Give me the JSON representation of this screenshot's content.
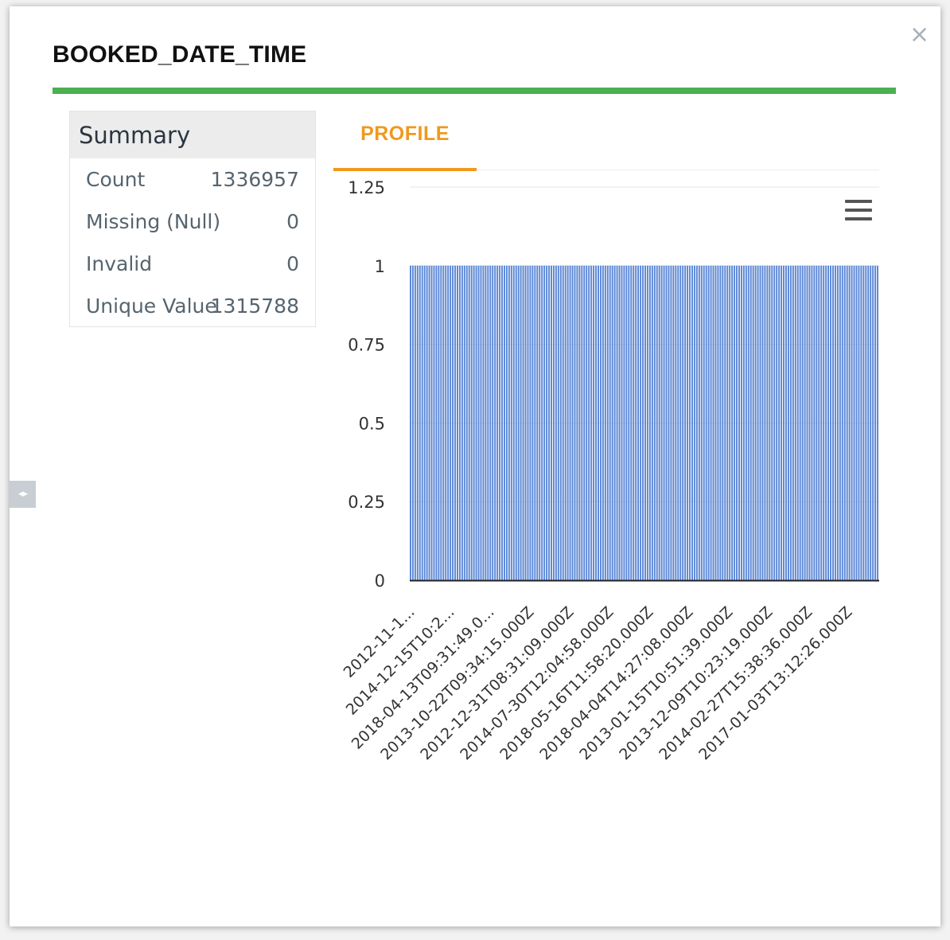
{
  "dialog": {
    "title": "BOOKED_DATE_TIME",
    "close_label": "×",
    "accent_color": "#4caf50"
  },
  "summary": {
    "heading": "Summary",
    "rows": [
      {
        "label": "Count",
        "value": "1336957"
      },
      {
        "label": "Missing (Null)",
        "value": "0"
      },
      {
        "label": "Invalid",
        "value": "0"
      },
      {
        "label": "Unique Value",
        "value": "1315788"
      }
    ]
  },
  "side_handle": {
    "label": "◂▸"
  },
  "tabs": {
    "active": "PROFILE",
    "active_color": "#f0991d"
  },
  "chart_menu": {
    "icon": "hamburger-menu-icon"
  },
  "chart_data": {
    "type": "bar",
    "bar_color": "#5b87d6",
    "bar_count": 200,
    "value_per_bar": 1,
    "ylim": [
      0,
      1.25
    ],
    "y_ticks": [
      "1.25",
      "1",
      "0.75",
      "0.5",
      "0.25",
      "0"
    ],
    "x_tick_labels": [
      "2012-11-1...",
      "2014-12-15T10:2...",
      "2018-04-13T09:31:49.0...",
      "2013-10-22T09:34:15.000Z",
      "2012-12-31T08:31:09.000Z",
      "2014-07-30T12:04:58.000Z",
      "2018-05-16T11:58:20.000Z",
      "2018-04-04T14:27:08.000Z",
      "2013-01-15T10:51:39.000Z",
      "2013-12-09T10:23:19.000Z",
      "2014-02-27T15:38:36.000Z",
      "2017-01-03T13:12:26.000Z"
    ],
    "grid": true,
    "legend": "none"
  }
}
